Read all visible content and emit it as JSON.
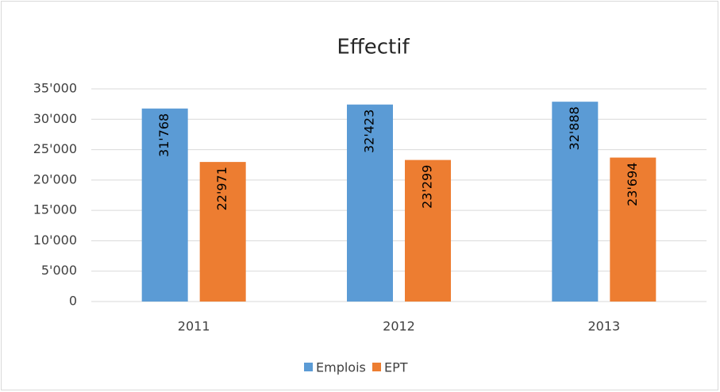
{
  "chart_data": {
    "type": "bar",
    "title": "Effectif",
    "categories": [
      "2011",
      "2012",
      "2013"
    ],
    "series": [
      {
        "name": "Emplois",
        "color": "#5b9bd5",
        "values": [
          31768,
          32423,
          32888
        ],
        "value_labels": [
          "31'768",
          "32'423",
          "32'888"
        ]
      },
      {
        "name": "EPT",
        "color": "#ed7d31",
        "values": [
          22971,
          23299,
          23694
        ],
        "value_labels": [
          "22'971",
          "23'299",
          "23'694"
        ]
      }
    ],
    "ylim": [
      0,
      35000
    ],
    "yticks": [
      0,
      {
        "value": 5000,
        "label": "5'000"
      },
      {
        "value": 10000,
        "label": "10'000"
      },
      {
        "value": 15000,
        "label": "15'000"
      },
      {
        "value": 20000,
        "label": "20'000"
      },
      {
        "value": 25000,
        "label": "25'000"
      },
      {
        "value": 30000,
        "label": "30'000"
      },
      {
        "value": 35000,
        "label": "35'000"
      }
    ],
    "grid": true,
    "legend": "bottom"
  }
}
